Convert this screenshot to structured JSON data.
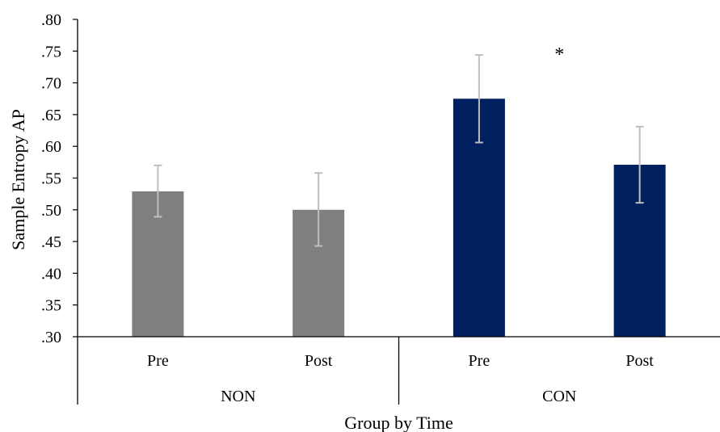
{
  "chart_data": {
    "type": "bar",
    "xlabel": "Group by Time",
    "ylabel": "Sample Entropy AP",
    "ylim": [
      0.3,
      0.8
    ],
    "ytick_values": [
      0.3,
      0.35,
      0.4,
      0.45,
      0.5,
      0.55,
      0.6,
      0.65,
      0.7,
      0.75,
      0.8
    ],
    "ytick_labels": [
      ".30",
      ".35",
      ".40",
      ".45",
      ".50",
      ".55",
      ".60",
      ".65",
      ".70",
      ".75",
      ".80"
    ],
    "groups": [
      {
        "label": "NON",
        "color": "#808080",
        "categories": [
          "Pre",
          "Post"
        ],
        "values": [
          0.529,
          0.5
        ],
        "error_low": [
          0.489,
          0.443
        ],
        "error_high": [
          0.57,
          0.558
        ]
      },
      {
        "label": "CON",
        "color": "#002060",
        "categories": [
          "Pre",
          "Post"
        ],
        "values": [
          0.675,
          0.571
        ],
        "error_low": [
          0.606,
          0.511
        ],
        "error_high": [
          0.744,
          0.631
        ]
      }
    ],
    "error_bar_color": "#BFBFBF",
    "annotation": {
      "text": "*",
      "group": "CON"
    },
    "grid": false,
    "legend": "none"
  }
}
